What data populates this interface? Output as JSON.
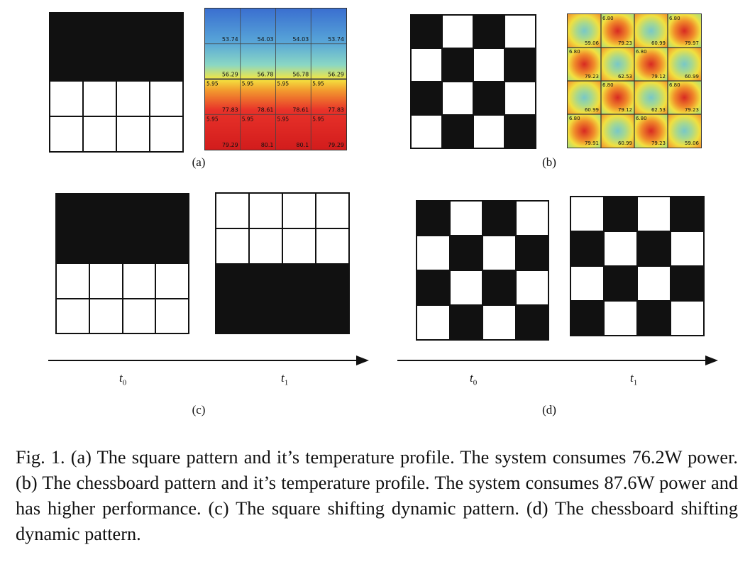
{
  "figure": {
    "panels": [
      {
        "label": "(a)"
      },
      {
        "label": "(b)"
      },
      {
        "label": "(c)",
        "time_labels": [
          "t0",
          "t1"
        ]
      },
      {
        "label": "(d)",
        "time_labels": [
          "t0",
          "t1"
        ]
      }
    ],
    "time_label_parts": {
      "t0": {
        "base": "t",
        "sub": "0"
      },
      "t1": {
        "base": "t",
        "sub": "1"
      }
    },
    "heatmap_a": {
      "rows": [
        [
          "53.74",
          "54.03",
          "54.03",
          "53.74"
        ],
        [
          "56.29",
          "56.78",
          "56.78",
          "56.29"
        ],
        [
          "77.83",
          "78.61",
          "78.61",
          "77.83"
        ],
        [
          "79.29",
          "80.1",
          "80.1",
          "79.29"
        ]
      ],
      "corner_values": {
        "row3": [
          "5.95",
          "5.95",
          "5.95",
          "5.95"
        ],
        "row4": [
          "5.95",
          "5.95",
          "5.95",
          "5.95"
        ]
      }
    },
    "heatmap_b": {
      "top_labels": [
        [
          "",
          "6.80",
          "",
          "6.80"
        ],
        [
          "6.80",
          "",
          "6.80",
          ""
        ],
        [
          "",
          "6.80",
          "",
          "6.80"
        ],
        [
          "6.80",
          "",
          "6.80",
          ""
        ]
      ],
      "bottom_values": [
        [
          "59.06",
          "79.23",
          "60.99",
          "79.97"
        ],
        [
          "79.23",
          "62.53",
          "79.12",
          "60.99"
        ],
        [
          "60.99",
          "79.12",
          "62.53",
          "79.23"
        ],
        [
          "79.91",
          "60.99",
          "79.23",
          "59.06"
        ]
      ],
      "hot_cells": [
        [
          0,
          1
        ],
        [
          0,
          3
        ],
        [
          1,
          0
        ],
        [
          1,
          2
        ],
        [
          2,
          1
        ],
        [
          2,
          3
        ],
        [
          3,
          0
        ],
        [
          3,
          2
        ]
      ]
    },
    "caption": "Fig. 1.  (a) The square pattern and it’s temperature profile. The system consumes 76.2W power. (b) The chessboard pattern and it’s temperature profile. The system consumes 87.6W power and has higher performance. (c) The square shifting dynamic pattern. (d) The chessboard shifting dynamic pattern."
  }
}
